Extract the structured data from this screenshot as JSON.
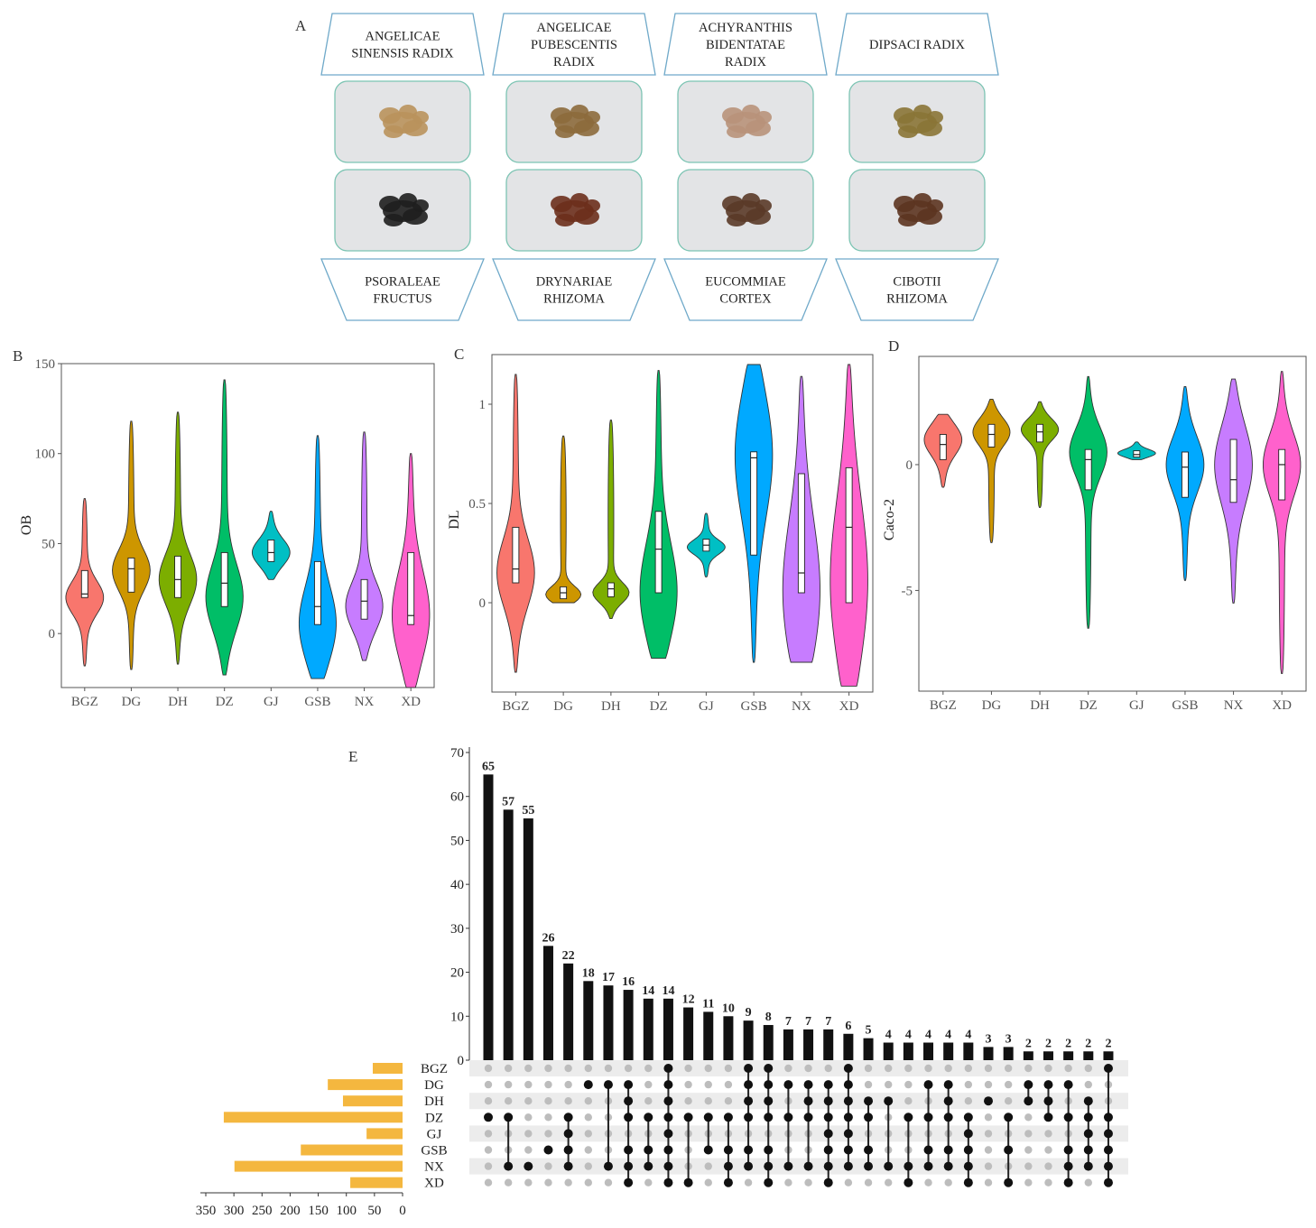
{
  "panel_labels": {
    "a": "A",
    "b": "B",
    "c": "C",
    "d": "D",
    "e": "E"
  },
  "herbs": [
    {
      "name_lines": [
        "ANGELICAE",
        "SINENSIS RADIX"
      ],
      "position": "top",
      "photo_color": "#b9925c"
    },
    {
      "name_lines": [
        "ANGELICAE",
        "PUBESCENTIS",
        "RADIX"
      ],
      "position": "top",
      "photo_color": "#8c6a3c"
    },
    {
      "name_lines": [
        "ACHYRANTHIS",
        "BIDENTATAE",
        "RADIX"
      ],
      "position": "top",
      "photo_color": "#b8927a"
    },
    {
      "name_lines": [
        "DIPSACI RADIX"
      ],
      "position": "top",
      "photo_color": "#8a7436"
    },
    {
      "name_lines": [
        "PSORALEAE",
        "FRUCTUS"
      ],
      "position": "bottom",
      "photo_color": "#1e1e1e"
    },
    {
      "name_lines": [
        "DRYNARIAE",
        "RHIZOMA"
      ],
      "position": "bottom",
      "photo_color": "#6b2f1c"
    },
    {
      "name_lines": [
        "EUCOMMIAE",
        "CORTEX"
      ],
      "position": "bottom",
      "photo_color": "#5a3a28"
    },
    {
      "name_lines": [
        "CIBOTII",
        "RHIZOMA"
      ],
      "position": "bottom",
      "photo_color": "#5c3420"
    }
  ],
  "chart_data": [
    {
      "type": "violin",
      "panel": "B",
      "ylabel": "OB",
      "ylim": [
        -30,
        150
      ],
      "yticks": [
        0,
        50,
        100,
        150
      ],
      "categories": [
        "BGZ",
        "DG",
        "DH",
        "DZ",
        "GJ",
        "GSB",
        "NX",
        "XD"
      ],
      "colors": [
        "#F8766D",
        "#CD9600",
        "#7CAE00",
        "#00BE67",
        "#00BFC4",
        "#00A9FF",
        "#C77CFF",
        "#FF61CC"
      ],
      "stats": [
        {
          "min": -18,
          "q1": 20,
          "median": 22,
          "q3": 35,
          "max": 75,
          "mode": 20
        },
        {
          "min": -20,
          "q1": 23,
          "median": 36,
          "q3": 42,
          "max": 118,
          "mode": 35
        },
        {
          "min": -17,
          "q1": 20,
          "median": 30,
          "q3": 43,
          "max": 123,
          "mode": 30
        },
        {
          "min": -23,
          "q1": 15,
          "median": 28,
          "q3": 45,
          "max": 141,
          "mode": 20
        },
        {
          "min": 30,
          "q1": 40,
          "median": 45,
          "q3": 52,
          "max": 68,
          "mode": 45
        },
        {
          "min": -25,
          "q1": 5,
          "median": 15,
          "q3": 40,
          "max": 110,
          "mode": 5
        },
        {
          "min": -15,
          "q1": 8,
          "median": 18,
          "q3": 30,
          "max": 112,
          "mode": 15
        },
        {
          "min": -30,
          "q1": 5,
          "median": 10,
          "q3": 45,
          "max": 100,
          "mode": 10
        }
      ]
    },
    {
      "type": "violin",
      "panel": "C",
      "ylabel": "DL",
      "ylim": [
        -0.45,
        1.25
      ],
      "yticks": [
        0.0,
        0.5,
        1.0
      ],
      "categories": [
        "BGZ",
        "DG",
        "DH",
        "DZ",
        "GJ",
        "GSB",
        "NX",
        "XD"
      ],
      "colors": [
        "#F8766D",
        "#CD9600",
        "#7CAE00",
        "#00BE67",
        "#00BFC4",
        "#00A9FF",
        "#C77CFF",
        "#FF61CC"
      ],
      "stats": [
        {
          "min": -0.35,
          "q1": 0.1,
          "median": 0.17,
          "q3": 0.38,
          "max": 1.15,
          "mode": 0.15
        },
        {
          "min": 0.0,
          "q1": 0.02,
          "median": 0.05,
          "q3": 0.08,
          "max": 0.84,
          "mode": 0.04
        },
        {
          "min": -0.08,
          "q1": 0.03,
          "median": 0.07,
          "q3": 0.1,
          "max": 0.92,
          "mode": 0.05
        },
        {
          "min": -0.28,
          "q1": 0.05,
          "median": 0.27,
          "q3": 0.46,
          "max": 1.17,
          "mode": 0.05
        },
        {
          "min": 0.13,
          "q1": 0.26,
          "median": 0.29,
          "q3": 0.32,
          "max": 0.45,
          "mode": 0.28
        },
        {
          "min": -0.3,
          "q1": 0.24,
          "median": 0.73,
          "q3": 0.76,
          "max": 1.2,
          "mode": 0.75
        },
        {
          "min": -0.3,
          "q1": 0.05,
          "median": 0.15,
          "q3": 0.65,
          "max": 1.14,
          "mode": 0.05
        },
        {
          "min": -0.42,
          "q1": 0.0,
          "median": 0.38,
          "q3": 0.68,
          "max": 1.2,
          "mode": 0.1
        }
      ]
    },
    {
      "type": "violin",
      "panel": "D",
      "ylabel": "Caco-2",
      "ylim": [
        -9,
        4.3
      ],
      "yticks": [
        -5,
        0
      ],
      "categories": [
        "BGZ",
        "DG",
        "DH",
        "DZ",
        "GJ",
        "GSB",
        "NX",
        "XD"
      ],
      "colors": [
        "#F8766D",
        "#CD9600",
        "#7CAE00",
        "#00BE67",
        "#00BFC4",
        "#00A9FF",
        "#C77CFF",
        "#FF61CC"
      ],
      "stats": [
        {
          "min": -0.9,
          "q1": 0.2,
          "median": 0.8,
          "q3": 1.2,
          "max": 2.0,
          "mode": 1.0
        },
        {
          "min": -3.1,
          "q1": 0.7,
          "median": 1.2,
          "q3": 1.6,
          "max": 2.6,
          "mode": 1.3
        },
        {
          "min": -1.7,
          "q1": 0.9,
          "median": 1.3,
          "q3": 1.6,
          "max": 2.5,
          "mode": 1.4
        },
        {
          "min": -6.5,
          "q1": -1.0,
          "median": 0.2,
          "q3": 0.6,
          "max": 3.5,
          "mode": 0.5
        },
        {
          "min": 0.2,
          "q1": 0.3,
          "median": 0.4,
          "q3": 0.55,
          "max": 0.9,
          "mode": 0.45
        },
        {
          "min": -4.6,
          "q1": -1.3,
          "median": -0.1,
          "q3": 0.5,
          "max": 3.1,
          "mode": 0.0
        },
        {
          "min": -5.5,
          "q1": -1.5,
          "median": -0.6,
          "q3": 1.0,
          "max": 3.4,
          "mode": 0.0
        },
        {
          "min": -8.3,
          "q1": -1.4,
          "median": 0.0,
          "q3": 0.6,
          "max": 3.7,
          "mode": 0.0
        }
      ]
    },
    {
      "type": "upset",
      "panel": "E",
      "ylim": [
        0,
        70
      ],
      "yticks": [
        0,
        10,
        20,
        30,
        40,
        50,
        60,
        70
      ],
      "sets": [
        "BGZ",
        "DG",
        "DH",
        "DZ",
        "GJ",
        "GSB",
        "NX",
        "XD"
      ],
      "set_sizes": [
        53,
        133,
        106,
        318,
        64,
        181,
        299,
        93
      ],
      "set_size_ticks": [
        350,
        300,
        250,
        200,
        150,
        100,
        50,
        0
      ],
      "set_color": "#F4B73F",
      "intersection_sizes": [
        65,
        57,
        55,
        26,
        22,
        18,
        17,
        16,
        14,
        14,
        12,
        11,
        10,
        9,
        8,
        7,
        7,
        7,
        6,
        5,
        4,
        4,
        4,
        4,
        4,
        3,
        3,
        2,
        2,
        2,
        2,
        2
      ],
      "intersections": [
        [
          "DZ"
        ],
        [
          "DZ",
          "NX"
        ],
        [
          "NX"
        ],
        [
          "GSB"
        ],
        [
          "DZ",
          "GJ",
          "GSB",
          "NX"
        ],
        [
          "DG"
        ],
        [
          "DG",
          "NX"
        ],
        [
          "DG",
          "DH",
          "DZ",
          "GSB",
          "NX",
          "XD"
        ],
        [
          "DZ",
          "GSB",
          "NX"
        ],
        [
          "BGZ",
          "DG",
          "DH",
          "DZ",
          "GJ",
          "GSB",
          "NX",
          "XD"
        ],
        [
          "DZ",
          "XD"
        ],
        [
          "DZ",
          "GSB"
        ],
        [
          "DZ",
          "GSB",
          "NX",
          "XD"
        ],
        [
          "BGZ",
          "DG",
          "DH",
          "DZ",
          "GSB",
          "NX"
        ],
        [
          "BGZ",
          "DG",
          "DH",
          "DZ",
          "GSB",
          "NX",
          "XD"
        ],
        [
          "DG",
          "DZ",
          "NX"
        ],
        [
          "DG",
          "DH",
          "DZ",
          "NX"
        ],
        [
          "DG",
          "DH",
          "DZ",
          "GJ",
          "GSB",
          "NX",
          "XD"
        ],
        [
          "BGZ",
          "DG",
          "DH",
          "DZ",
          "GJ",
          "GSB",
          "NX"
        ],
        [
          "DH",
          "DZ",
          "GSB",
          "NX"
        ],
        [
          "DH",
          "NX"
        ],
        [
          "DZ",
          "NX",
          "XD"
        ],
        [
          "DG",
          "DZ",
          "GSB",
          "NX"
        ],
        [
          "DG",
          "DH",
          "DZ",
          "GSB",
          "NX"
        ],
        [
          "DZ",
          "GJ",
          "GSB",
          "NX",
          "XD"
        ],
        [
          "DH"
        ],
        [
          "DZ",
          "GSB",
          "XD"
        ],
        [
          "DG",
          "DH"
        ],
        [
          "DG",
          "DH",
          "DZ"
        ],
        [
          "DG",
          "DZ",
          "GSB",
          "NX",
          "XD"
        ],
        [
          "DH",
          "DZ",
          "GJ",
          "GSB",
          "NX"
        ],
        [
          "BGZ",
          "DZ",
          "GJ",
          "GSB",
          "NX",
          "XD"
        ]
      ]
    }
  ]
}
